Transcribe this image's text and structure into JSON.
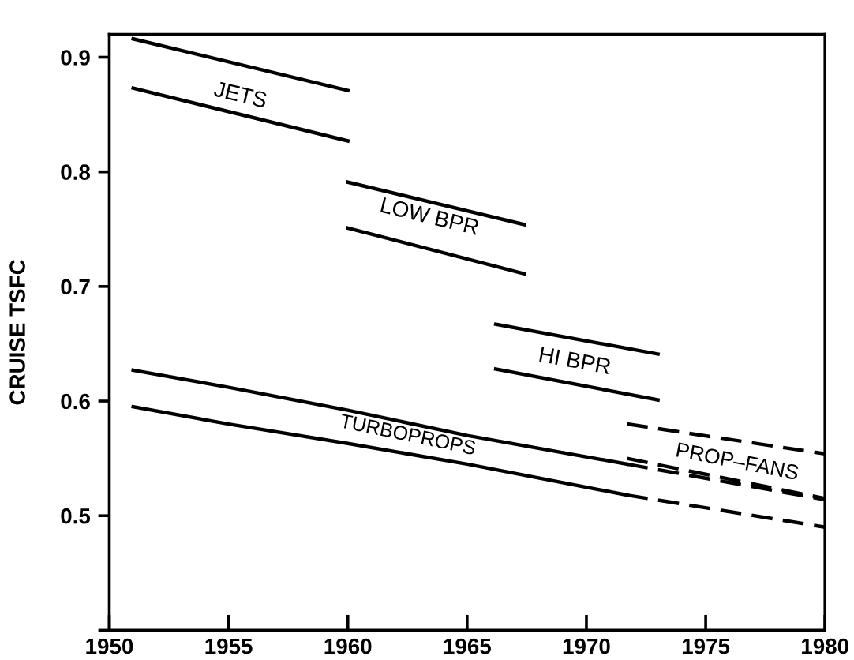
{
  "chart_data": {
    "type": "line",
    "ylabel": "CRUISE TSFC",
    "xlim": [
      1950,
      1980
    ],
    "xticks": [
      1950,
      1955,
      1960,
      1965,
      1970,
      1975,
      1980
    ],
    "ylim": [
      0.4,
      0.92
    ],
    "yticks": [
      {
        "value": 0.4,
        "label": null
      },
      0.5,
      0.6,
      0.7,
      0.8,
      0.9
    ],
    "grid": false,
    "legend": false,
    "marker": "none",
    "series": [
      {
        "color": "#000000",
        "line_style": "solid",
        "x": [
          1951,
          1960
        ],
        "values": [
          0.916,
          0.871
        ]
      },
      {
        "color": "#000000",
        "line_style": "solid",
        "x": [
          1951,
          1960
        ],
        "values": [
          0.873,
          0.827
        ]
      },
      {
        "color": "#000000",
        "line_style": "solid",
        "x": [
          1960,
          1967.4
        ],
        "values": [
          0.791,
          0.754
        ]
      },
      {
        "color": "#000000",
        "line_style": "solid",
        "x": [
          1960,
          1967.4
        ],
        "values": [
          0.751,
          0.711
        ]
      },
      {
        "color": "#000000",
        "line_style": "solid",
        "x": [
          1966.2,
          1973
        ],
        "values": [
          0.667,
          0.641
        ]
      },
      {
        "color": "#000000",
        "line_style": "solid",
        "x": [
          1966.2,
          1973
        ],
        "values": [
          0.628,
          0.601
        ]
      },
      {
        "color": "#000000",
        "line_style": "solid",
        "x": [
          1951,
          1955,
          1960,
          1965,
          1971.7
        ],
        "values": [
          0.627,
          0.612,
          0.592,
          0.57,
          0.545
        ]
      },
      {
        "color": "#000000",
        "line_style": "solid",
        "x": [
          1951,
          1955,
          1960,
          1965,
          1971.7
        ],
        "values": [
          0.595,
          0.58,
          0.563,
          0.545,
          0.518
        ]
      },
      {
        "color": "#000000",
        "line_style": "dashed",
        "x": [
          1971.7,
          1980
        ],
        "values": [
          0.545,
          0.514
        ]
      },
      {
        "color": "#000000",
        "line_style": "dashed",
        "x": [
          1971.7,
          1980
        ],
        "values": [
          0.518,
          0.49
        ]
      },
      {
        "color": "#000000",
        "line_style": "dashed",
        "x": [
          1971.7,
          1980
        ],
        "values": [
          0.58,
          0.554
        ]
      },
      {
        "color": "#000000",
        "line_style": "dashed",
        "x": [
          1971.7,
          1980
        ],
        "values": [
          0.55,
          0.515
        ]
      }
    ],
    "annotations": [
      "JETS",
      "LOW BPR",
      "HI BPR",
      "TURBOPROPS",
      "PROP–FANS"
    ]
  }
}
